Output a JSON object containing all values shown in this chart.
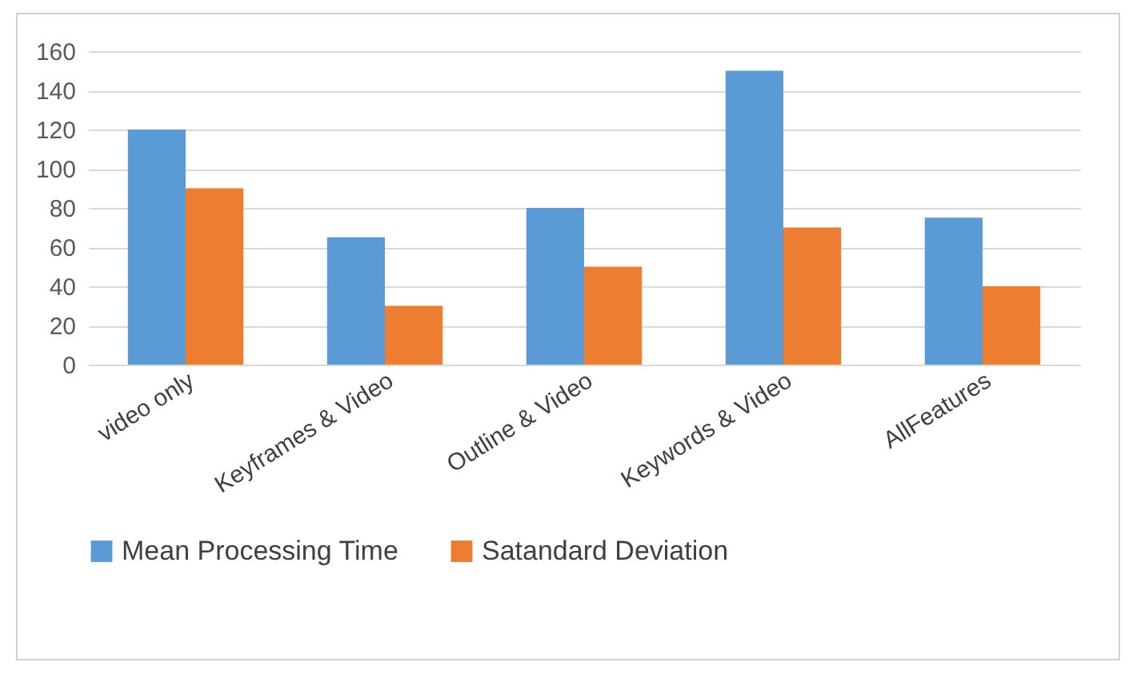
{
  "chart_data": {
    "type": "bar",
    "categories": [
      "video only",
      "Keyframes & Video",
      "Outline & Video",
      "Keywords & Video",
      "AllFeatures"
    ],
    "series": [
      {
        "name": "Mean Processing Time",
        "color": "#5b9bd5",
        "values": [
          120,
          65,
          80,
          150,
          75
        ]
      },
      {
        "name": "Satandard Deviation",
        "color": "#ed7d31",
        "values": [
          90,
          30,
          50,
          70,
          40
        ]
      }
    ],
    "ylim": [
      0,
      160
    ],
    "yticks": [
      0,
      20,
      40,
      60,
      80,
      100,
      120,
      140,
      160
    ],
    "grid": "y",
    "legend": "bottom"
  }
}
